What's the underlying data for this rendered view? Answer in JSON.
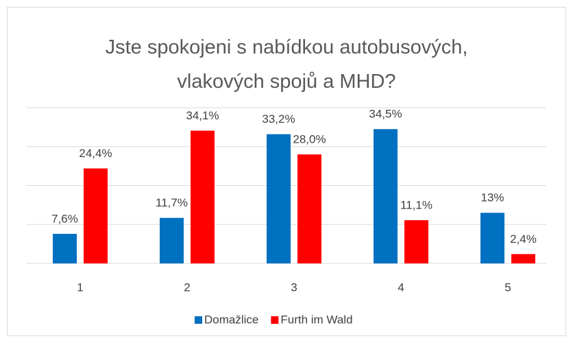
{
  "chart_data": {
    "type": "bar",
    "title": "Jste spokojeni s nabídkou autobusových, vlakových spojů a MHD?",
    "categories": [
      "1",
      "2",
      "3",
      "4",
      "5"
    ],
    "series": [
      {
        "name": "Domažlice",
        "color": "#0070c0",
        "values": [
          7.6,
          11.7,
          33.2,
          34.5,
          13
        ],
        "value_labels": [
          "7,6%",
          "11,7%",
          "33,2%",
          "34,5%",
          "13%"
        ]
      },
      {
        "name": "Furth im Wald",
        "color": "#ff0000",
        "values": [
          24.4,
          34.1,
          28.0,
          11.1,
          2.4
        ],
        "value_labels": [
          "24,4%",
          "34,1%",
          "28,0%",
          "11,1%",
          "2,4%"
        ]
      }
    ],
    "ylim": [
      0,
      40
    ],
    "yticks": [
      0,
      10,
      20,
      30,
      40
    ],
    "grid": true,
    "legend": "bottom"
  }
}
